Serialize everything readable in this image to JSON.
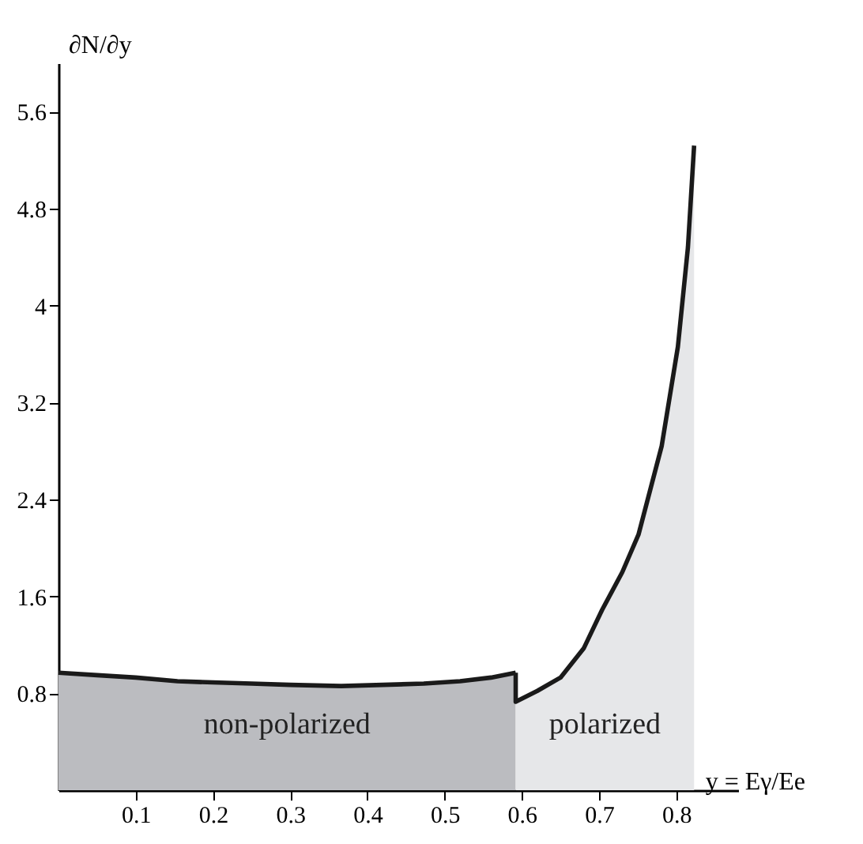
{
  "chart_data": {
    "type": "area",
    "ylabel": "∂N/∂y",
    "xlabel": "y = Eγ/Ee",
    "xlim": [
      0,
      0.88
    ],
    "ylim": [
      0,
      6.0
    ],
    "xticks": [
      0.1,
      0.2,
      0.3,
      0.4,
      0.5,
      0.6,
      0.7,
      0.8
    ],
    "yticks": [
      0.8,
      1.6,
      2.4,
      3.2,
      4,
      4.8,
      5.6
    ],
    "grid": false,
    "series": [
      {
        "name": "non-polarized",
        "color": "#bbbcc0",
        "x": [
          0,
          0.05,
          0.1,
          0.154,
          0.2,
          0.25,
          0.3,
          0.366,
          0.42,
          0.473,
          0.52,
          0.56,
          0.592
        ],
        "values": [
          0.97,
          0.95,
          0.93,
          0.9,
          0.89,
          0.88,
          0.87,
          0.86,
          0.87,
          0.88,
          0.9,
          0.93,
          0.97
        ]
      },
      {
        "name": "polarized",
        "color": "#e6e7e9",
        "x": [
          0.592,
          0.592,
          0.62,
          0.65,
          0.68,
          0.704,
          0.73,
          0.751,
          0.781,
          0.802,
          0.815,
          0.823
        ],
        "values": [
          0.97,
          0.73,
          0.82,
          0.93,
          1.17,
          1.49,
          1.8,
          2.11,
          2.84,
          3.66,
          4.48,
          5.32
        ]
      }
    ]
  }
}
